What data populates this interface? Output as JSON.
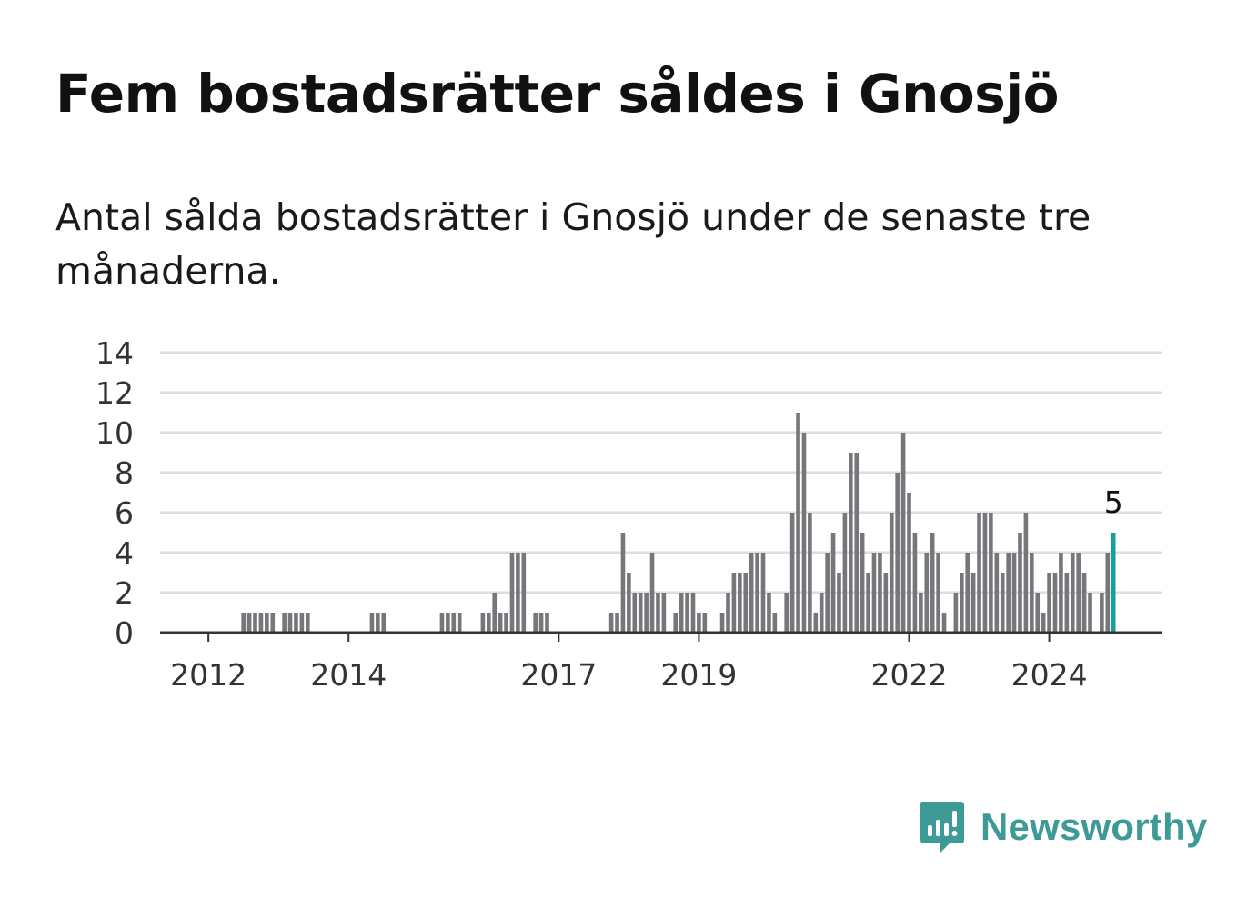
{
  "header": {
    "title": "Fem bostadsrätter såldes i Gnosjö",
    "subtitle": "Antal sålda bostadsrätter i Gnosjö under de senaste tre månaderna."
  },
  "brand": {
    "name": "Newsworthy",
    "icon": "newsworthy-logo-icon",
    "color": "#3e9a97"
  },
  "chart_data": {
    "type": "bar",
    "x_type": "month",
    "start_month": "2011-05",
    "y_ticks": [
      0,
      2,
      4,
      6,
      8,
      10,
      12,
      14
    ],
    "ylim": [
      0,
      14
    ],
    "x_ticks": [
      {
        "label": "2012",
        "month": "2012-01"
      },
      {
        "label": "2014",
        "month": "2014-01"
      },
      {
        "label": "2017",
        "month": "2017-01"
      },
      {
        "label": "2019",
        "month": "2019-01"
      },
      {
        "label": "2022",
        "month": "2022-01"
      },
      {
        "label": "2024",
        "month": "2024-01"
      }
    ],
    "grid": true,
    "values": [
      0,
      0,
      0,
      0,
      0,
      0,
      0,
      0,
      0,
      0,
      0,
      0,
      0,
      0,
      1,
      1,
      1,
      1,
      1,
      1,
      0,
      1,
      1,
      1,
      1,
      1,
      0,
      0,
      0,
      0,
      0,
      0,
      0,
      0,
      0,
      0,
      1,
      1,
      1,
      0,
      0,
      0,
      0,
      0,
      0,
      0,
      0,
      0,
      1,
      1,
      1,
      1,
      0,
      0,
      0,
      1,
      1,
      2,
      1,
      1,
      4,
      4,
      4,
      0,
      1,
      1,
      1,
      0,
      0,
      0,
      0,
      0,
      0,
      0,
      0,
      0,
      0,
      1,
      1,
      5,
      3,
      2,
      2,
      2,
      4,
      2,
      2,
      0,
      1,
      2,
      2,
      2,
      1,
      1,
      0,
      0,
      1,
      2,
      3,
      3,
      3,
      4,
      4,
      4,
      2,
      1,
      0,
      2,
      6,
      11,
      10,
      6,
      1,
      2,
      4,
      5,
      3,
      6,
      9,
      9,
      5,
      3,
      4,
      4,
      3,
      6,
      8,
      10,
      7,
      5,
      2,
      4,
      5,
      4,
      1,
      0,
      2,
      3,
      4,
      3,
      6,
      6,
      6,
      4,
      3,
      4,
      4,
      5,
      6,
      4,
      2,
      1,
      3,
      3,
      4,
      3,
      4,
      4,
      3,
      2,
      0,
      2,
      4,
      5
    ],
    "highlight": {
      "label": "5",
      "value": 5
    },
    "colors": {
      "bar": "#77767b",
      "highlight": "#17a098",
      "grid": "#dedede",
      "axis": "#333333",
      "tick_text": "#333333"
    }
  }
}
